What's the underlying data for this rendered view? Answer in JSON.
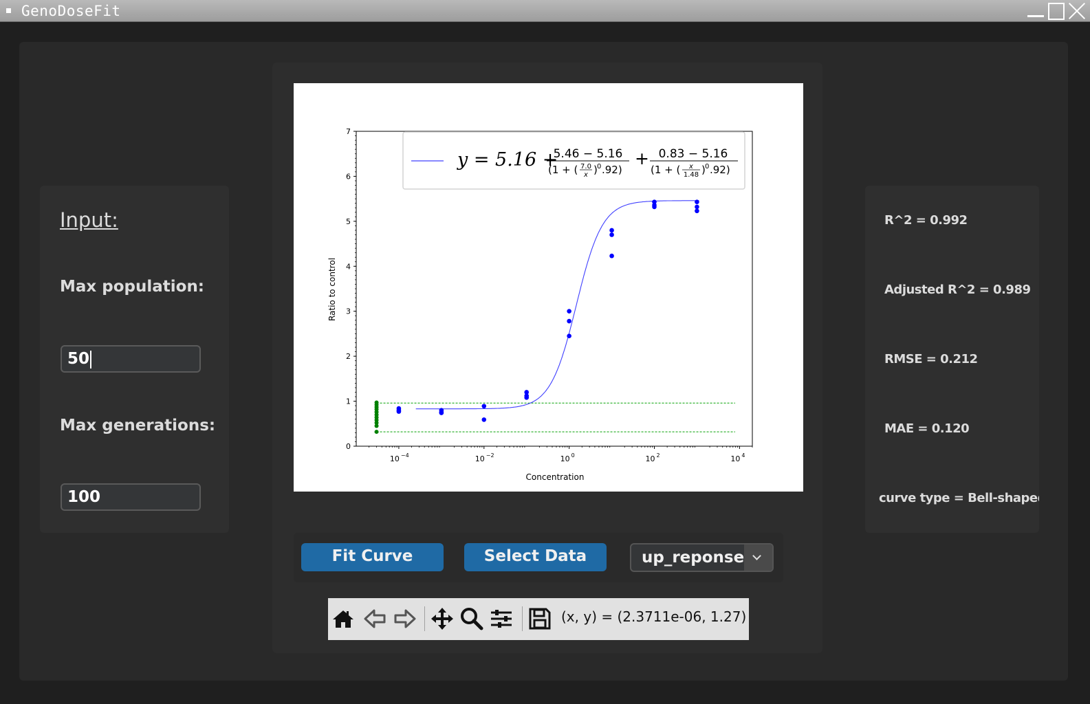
{
  "window": {
    "title": "GenoDoseFit"
  },
  "input_panel": {
    "heading": "Input:",
    "max_population_label": "Max population:",
    "max_population_value": "50",
    "max_generations_label": "Max generations:",
    "max_generations_value": "100"
  },
  "metrics": {
    "r2": "R^2 = 0.992",
    "adj_r2": "Adjusted R^2 = 0.989",
    "rmse": "RMSE = 0.212",
    "mae": "MAE = 0.120",
    "curve_type": "curve type = Bell-shaped"
  },
  "buttons": {
    "fit_curve": "Fit Curve",
    "select_data": "Select Data",
    "dropdown_value": "up_reponse"
  },
  "toolbar": {
    "coords": "(x, y) = (2.3711e-06, 1.27)",
    "icons": [
      "home-icon",
      "back-arrow-icon",
      "forward-arrow-icon",
      "pan-icon",
      "zoom-icon",
      "configure-icon",
      "save-icon"
    ]
  },
  "chart_data": {
    "type": "scatter",
    "xlabel": "Concentration",
    "ylabel": "Ratio to control",
    "xscale": "log",
    "xlim": [
      1e-05,
      20000
    ],
    "ylim": [
      0,
      7
    ],
    "yticks": [
      "0",
      "1",
      "2",
      "3",
      "4",
      "5",
      "6",
      "7"
    ],
    "xticks": [
      {
        "value": 0.0001,
        "base": "10",
        "exp": "−4"
      },
      {
        "value": 0.01,
        "base": "10",
        "exp": "−2"
      },
      {
        "value": 1,
        "base": "10",
        "exp": "0"
      },
      {
        "value": 100,
        "base": "10",
        "exp": "2"
      },
      {
        "value": 10000,
        "base": "10",
        "exp": "4"
      }
    ],
    "legend": {
      "position": "top-right",
      "lhs": "y = 5.16 +",
      "frac1_num": "5.46 − 5.16",
      "frac1_den_pre": "(1 + (",
      "frac1_inner_num": "7.0",
      "frac1_inner_den": "x",
      "frac1_den_post": ")",
      "frac1_exp": "0",
      "frac1_tail": ".92)",
      "plus": "+",
      "frac2_num": "0.83 − 5.16",
      "frac2_den_pre": "(1 + (",
      "frac2_inner_num": "x",
      "frac2_inner_den": "1.48",
      "frac2_den_post": ")",
      "frac2_exp": "0",
      "frac2_tail": ".92)"
    },
    "fit_curve": {
      "bottom": 0.83,
      "top": 5.46,
      "ec50": 1.48,
      "hill": 0.92
    },
    "scatter_blue": [
      {
        "x": 0.0001,
        "y": 0.84
      },
      {
        "x": 0.0001,
        "y": 0.8
      },
      {
        "x": 0.0001,
        "y": 0.77
      },
      {
        "x": 0.001,
        "y": 0.8
      },
      {
        "x": 0.001,
        "y": 0.76
      },
      {
        "x": 0.001,
        "y": 0.74
      },
      {
        "x": 0.01,
        "y": 0.89
      },
      {
        "x": 0.01,
        "y": 0.59
      },
      {
        "x": 0.1,
        "y": 1.2
      },
      {
        "x": 0.1,
        "y": 1.12
      },
      {
        "x": 0.1,
        "y": 1.08
      },
      {
        "x": 1,
        "y": 3.0
      },
      {
        "x": 1,
        "y": 2.78
      },
      {
        "x": 1,
        "y": 2.45
      },
      {
        "x": 10,
        "y": 4.8
      },
      {
        "x": 10,
        "y": 4.7
      },
      {
        "x": 10,
        "y": 4.23
      },
      {
        "x": 100,
        "y": 5.43
      },
      {
        "x": 100,
        "y": 5.36
      },
      {
        "x": 100,
        "y": 5.32
      },
      {
        "x": 1000,
        "y": 5.43
      },
      {
        "x": 1000,
        "y": 5.32
      },
      {
        "x": 1000,
        "y": 5.23
      }
    ],
    "scatter_green_control": {
      "x": 3e-05,
      "y": [
        0.97,
        0.92,
        0.87,
        0.82,
        0.76,
        0.7,
        0.64,
        0.58,
        0.52,
        0.45,
        0.32
      ]
    },
    "control_band": [
      0.96,
      0.32
    ]
  }
}
